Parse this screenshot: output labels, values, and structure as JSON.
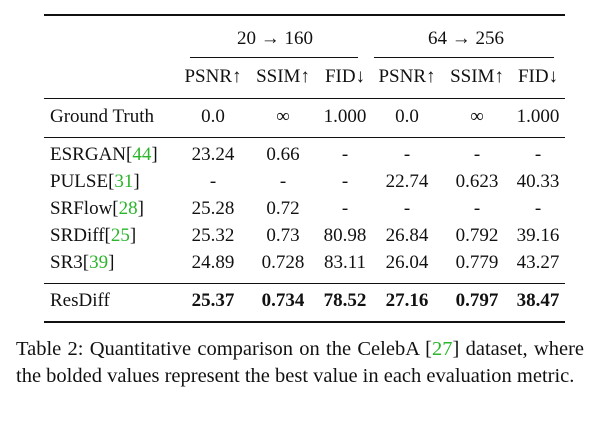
{
  "table": {
    "groups": [
      "20 → 160",
      "64 → 256"
    ],
    "metrics": [
      "PSNR↑",
      "SSIM↑",
      "FID↓",
      "PSNR↑",
      "SSIM↑",
      "FID↓"
    ],
    "rows": [
      {
        "method": [
          "Ground Truth"
        ],
        "values": [
          "0.0",
          "∞",
          "1.000",
          "0.0",
          "∞",
          "1.000"
        ]
      },
      {
        "method": [
          "ESRGAN[",
          "44",
          "]"
        ],
        "values": [
          "23.24",
          "0.66",
          "-",
          "-",
          "-",
          "-"
        ]
      },
      {
        "method": [
          "PULSE[",
          "31",
          "]"
        ],
        "values": [
          "-",
          "-",
          "-",
          "22.74",
          "0.623",
          "40.33"
        ]
      },
      {
        "method": [
          "SRFlow[",
          "28",
          "]"
        ],
        "values": [
          "25.28",
          "0.72",
          "-",
          "-",
          "-",
          "-"
        ]
      },
      {
        "method": [
          "SRDiff[",
          "25",
          "]"
        ],
        "values": [
          "25.32",
          "0.73",
          "80.98",
          "26.84",
          "0.792",
          "39.16"
        ]
      },
      {
        "method": [
          "SR3[",
          "39",
          "]"
        ],
        "values": [
          "24.89",
          "0.728",
          "83.11",
          "26.04",
          "0.779",
          "43.27"
        ]
      },
      {
        "method": [
          "ResDiff"
        ],
        "values": [
          "25.37",
          "0.734",
          "78.52",
          "27.16",
          "0.797",
          "38.47"
        ],
        "bold": true
      }
    ]
  },
  "caption": [
    "Table 2:  Quantitative comparison on the CelebA [",
    "27",
    "] dataset, where the bolded values represent the best value in each evaluation metric."
  ]
}
